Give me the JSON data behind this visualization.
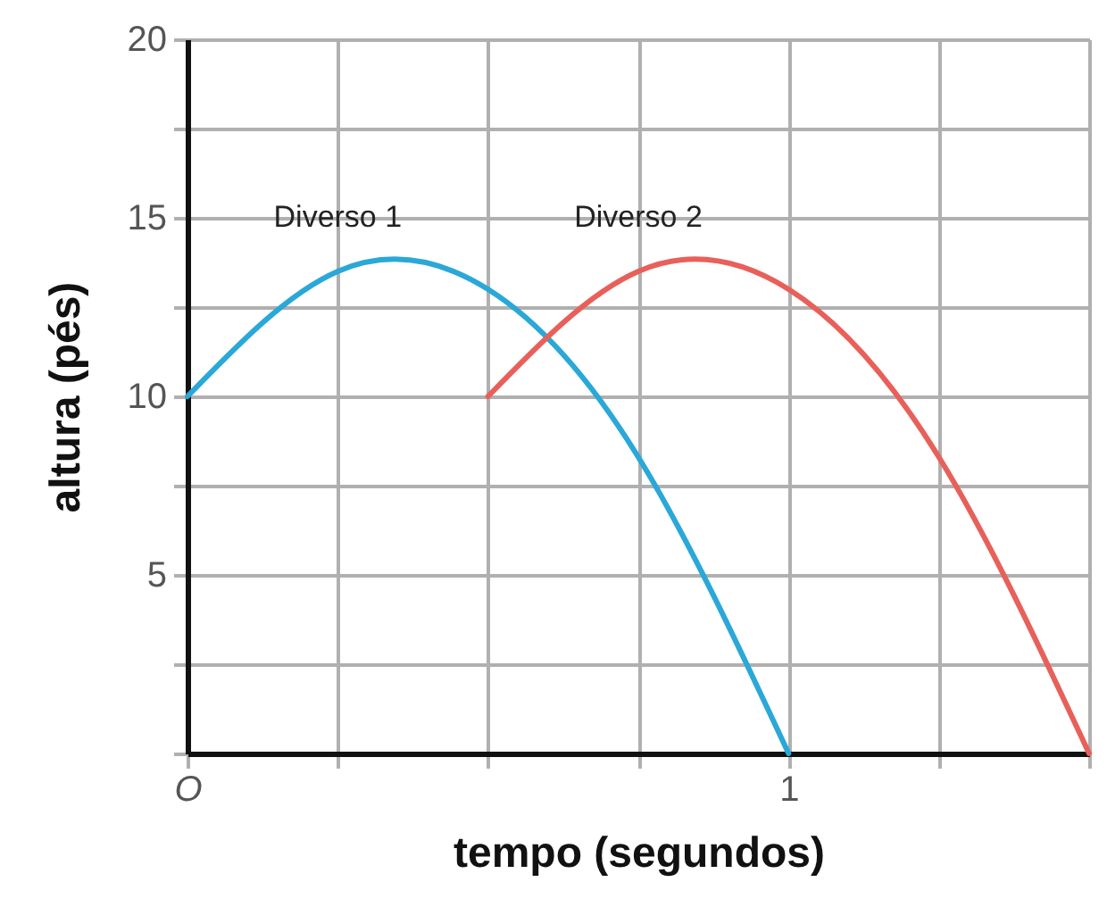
{
  "chart_data": {
    "type": "line",
    "xlabel": "tempo (segundos)",
    "ylabel": "altura (pés)",
    "categories": [
      "O",
      null,
      null,
      null,
      "1",
      null,
      null
    ],
    "series": [
      {
        "name": "Diverso 1",
        "color": "#2aa8d8",
        "values": [
          10,
          13.5,
          13.0,
          8.3,
          0,
          null,
          null
        ]
      },
      {
        "name": "Diverso 2",
        "color": "#e8605a",
        "values": [
          null,
          null,
          10,
          13.5,
          13.0,
          8.3,
          0
        ]
      }
    ],
    "ylim": [
      0,
      20
    ],
    "yticks": [
      {
        "value": 0,
        "label": null
      },
      {
        "value": 2.5,
        "label": null
      },
      5,
      {
        "value": 7.5,
        "label": null
      },
      10,
      {
        "value": 12.5,
        "label": null
      },
      15,
      {
        "value": 17.5,
        "label": null
      },
      20
    ],
    "grid": true,
    "legend": false,
    "marker": "none",
    "line_style": "solid"
  }
}
